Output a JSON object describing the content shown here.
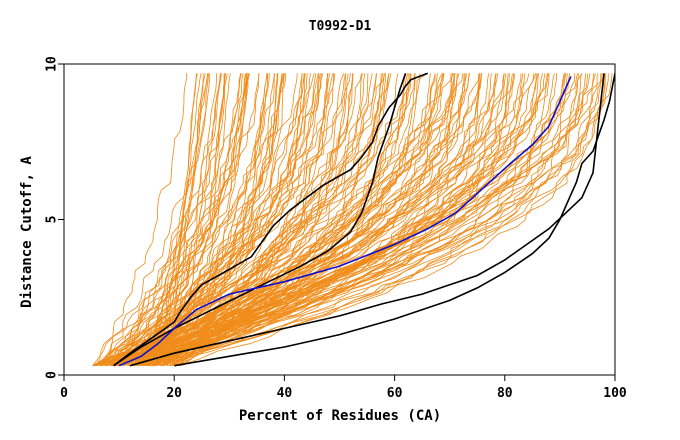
{
  "chart_data": {
    "type": "line",
    "title": "T0992-D1",
    "xlabel": "Percent of Residues (CA)",
    "ylabel": "Distance Cutoff, A",
    "xlim": [
      0,
      100
    ],
    "ylim": [
      0,
      10
    ],
    "x_ticks": [
      "0",
      "20",
      "40",
      "60",
      "80",
      "100"
    ],
    "y_ticks": [
      "0",
      "5",
      "10"
    ],
    "grid": false,
    "legend": "none",
    "colors": {
      "background_series": "#f08c1a",
      "highlight_black": "#000000",
      "highlight_blue": "#1010cc"
    },
    "background_series_count": 180,
    "highlight_series": [
      {
        "color": "#000000",
        "x": [
          9,
          12,
          16,
          20,
          21,
          23,
          25,
          29,
          34,
          36,
          38,
          41,
          44,
          47,
          49,
          52,
          54,
          56,
          57,
          59,
          61,
          62,
          63,
          66
        ],
        "y": [
          0.3,
          0.7,
          1.2,
          1.7,
          2.0,
          2.5,
          2.9,
          3.3,
          3.8,
          4.3,
          4.8,
          5.3,
          5.7,
          6.1,
          6.3,
          6.6,
          7.0,
          7.5,
          8.0,
          8.6,
          9.0,
          9.3,
          9.5,
          9.7
        ]
      },
      {
        "color": "#000000",
        "x": [
          9,
          14,
          20,
          28,
          36,
          43,
          48,
          52,
          54,
          56,
          57,
          58,
          59,
          60,
          61,
          62
        ],
        "y": [
          0.3,
          0.9,
          1.5,
          2.2,
          2.9,
          3.5,
          4.0,
          4.6,
          5.2,
          6.2,
          7.0,
          7.5,
          8.0,
          8.6,
          9.2,
          9.7
        ]
      },
      {
        "color": "#1010cc",
        "x": [
          10,
          14,
          17,
          20,
          24,
          30,
          40,
          50,
          60,
          66,
          71,
          76,
          81,
          85,
          88,
          90,
          92
        ],
        "y": [
          0.3,
          0.6,
          1.0,
          1.5,
          2.1,
          2.6,
          3.0,
          3.5,
          4.2,
          4.7,
          5.2,
          6.0,
          6.8,
          7.4,
          8.0,
          8.8,
          9.6
        ]
      },
      {
        "color": "#000000",
        "x": [
          12,
          20,
          30,
          40,
          50,
          58,
          65,
          70,
          75,
          80,
          84,
          88,
          91,
          94,
          96,
          98
        ],
        "y": [
          0.3,
          0.7,
          1.1,
          1.5,
          1.9,
          2.3,
          2.6,
          2.9,
          3.2,
          3.7,
          4.2,
          4.7,
          5.2,
          5.7,
          6.5,
          9.7
        ]
      },
      {
        "color": "#000000",
        "x": [
          20,
          30,
          40,
          50,
          60,
          70,
          75,
          80,
          85,
          88,
          90,
          92,
          93,
          94,
          96,
          97,
          98,
          99,
          100
        ],
        "y": [
          0.3,
          0.6,
          0.9,
          1.3,
          1.8,
          2.4,
          2.8,
          3.3,
          3.9,
          4.4,
          5.0,
          5.8,
          6.2,
          6.8,
          7.2,
          7.7,
          8.2,
          8.8,
          9.7
        ]
      }
    ]
  }
}
